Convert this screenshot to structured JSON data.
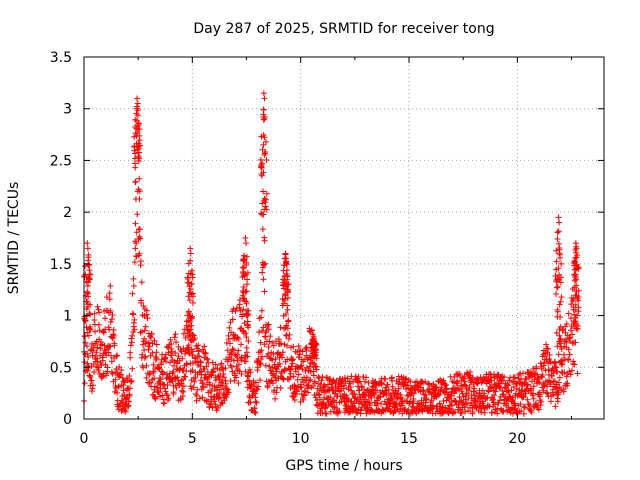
{
  "chart_data": {
    "type": "scatter",
    "title": "Day 287 of 2025, SRMTID for receiver tong",
    "xlabel": "GPS time / hours",
    "ylabel": "SRMTID / TECUs",
    "xlim": [
      0,
      24
    ],
    "ylim": [
      0,
      3.5
    ],
    "xticks": [
      0,
      5,
      10,
      15,
      20
    ],
    "yticks": [
      0,
      0.5,
      1,
      1.5,
      2,
      2.5,
      3,
      3.5
    ],
    "xtick_labels": [
      "0",
      "5",
      "10",
      "15",
      "20"
    ],
    "ytick_labels": [
      "0",
      "0.5",
      "1",
      "1.5",
      "2",
      "2.5",
      "3",
      "3.5"
    ],
    "grid": true,
    "marker": "+",
    "series_color": "#ff0000",
    "envelope_note": "approximate median trend (x hours, y TECU) of the dense point cloud",
    "envelope": [
      [
        0.0,
        0.45
      ],
      [
        0.1,
        0.9
      ],
      [
        0.2,
        0.55
      ],
      [
        0.4,
        0.6
      ],
      [
        0.6,
        0.85
      ],
      [
        0.8,
        0.6
      ],
      [
        1.0,
        0.8
      ],
      [
        1.2,
        0.9
      ],
      [
        1.4,
        0.5
      ],
      [
        1.6,
        0.3
      ],
      [
        1.8,
        0.25
      ],
      [
        2.0,
        0.2
      ],
      [
        2.2,
        0.6
      ],
      [
        2.4,
        1.8
      ],
      [
        2.5,
        2.4
      ],
      [
        2.6,
        1.4
      ],
      [
        2.7,
        0.75
      ],
      [
        2.9,
        0.7
      ],
      [
        3.1,
        0.55
      ],
      [
        3.4,
        0.45
      ],
      [
        3.7,
        0.4
      ],
      [
        4.0,
        0.5
      ],
      [
        4.2,
        0.55
      ],
      [
        4.4,
        0.45
      ],
      [
        4.6,
        0.5
      ],
      [
        4.8,
        1.0
      ],
      [
        4.9,
        0.6
      ],
      [
        5.2,
        0.45
      ],
      [
        5.5,
        0.5
      ],
      [
        5.8,
        0.35
      ],
      [
        6.2,
        0.3
      ],
      [
        6.5,
        0.35
      ],
      [
        6.8,
        0.75
      ],
      [
        7.1,
        0.7
      ],
      [
        7.4,
        0.9
      ],
      [
        7.6,
        0.3
      ],
      [
        7.9,
        0.2
      ],
      [
        8.2,
        0.9
      ],
      [
        8.3,
        1.6
      ],
      [
        8.4,
        0.7
      ],
      [
        8.7,
        0.45
      ],
      [
        9.0,
        0.5
      ],
      [
        9.3,
        0.9
      ],
      [
        9.5,
        0.5
      ],
      [
        9.8,
        0.45
      ],
      [
        10.2,
        0.4
      ],
      [
        10.5,
        0.65
      ],
      [
        10.8,
        0.25
      ],
      [
        11.5,
        0.2
      ],
      [
        12.5,
        0.22
      ],
      [
        13.5,
        0.2
      ],
      [
        14.5,
        0.22
      ],
      [
        15.5,
        0.18
      ],
      [
        16.5,
        0.2
      ],
      [
        17.5,
        0.25
      ],
      [
        18.5,
        0.25
      ],
      [
        19.5,
        0.22
      ],
      [
        20.5,
        0.25
      ],
      [
        21.0,
        0.3
      ],
      [
        21.3,
        0.45
      ],
      [
        21.6,
        0.4
      ],
      [
        21.8,
        0.35
      ],
      [
        22.0,
        0.55
      ],
      [
        22.3,
        0.6
      ],
      [
        22.6,
        0.9
      ],
      [
        22.8,
        0.8
      ]
    ],
    "spikes": [
      {
        "x": 0.15,
        "y": 1.7
      },
      {
        "x": 2.45,
        "y": 3.1
      },
      {
        "x": 4.9,
        "y": 1.65
      },
      {
        "x": 7.45,
        "y": 1.75
      },
      {
        "x": 8.3,
        "y": 3.15
      },
      {
        "x": 9.3,
        "y": 1.6
      },
      {
        "x": 10.6,
        "y": 0.8
      },
      {
        "x": 21.9,
        "y": 1.95
      },
      {
        "x": 22.7,
        "y": 1.7
      }
    ]
  }
}
